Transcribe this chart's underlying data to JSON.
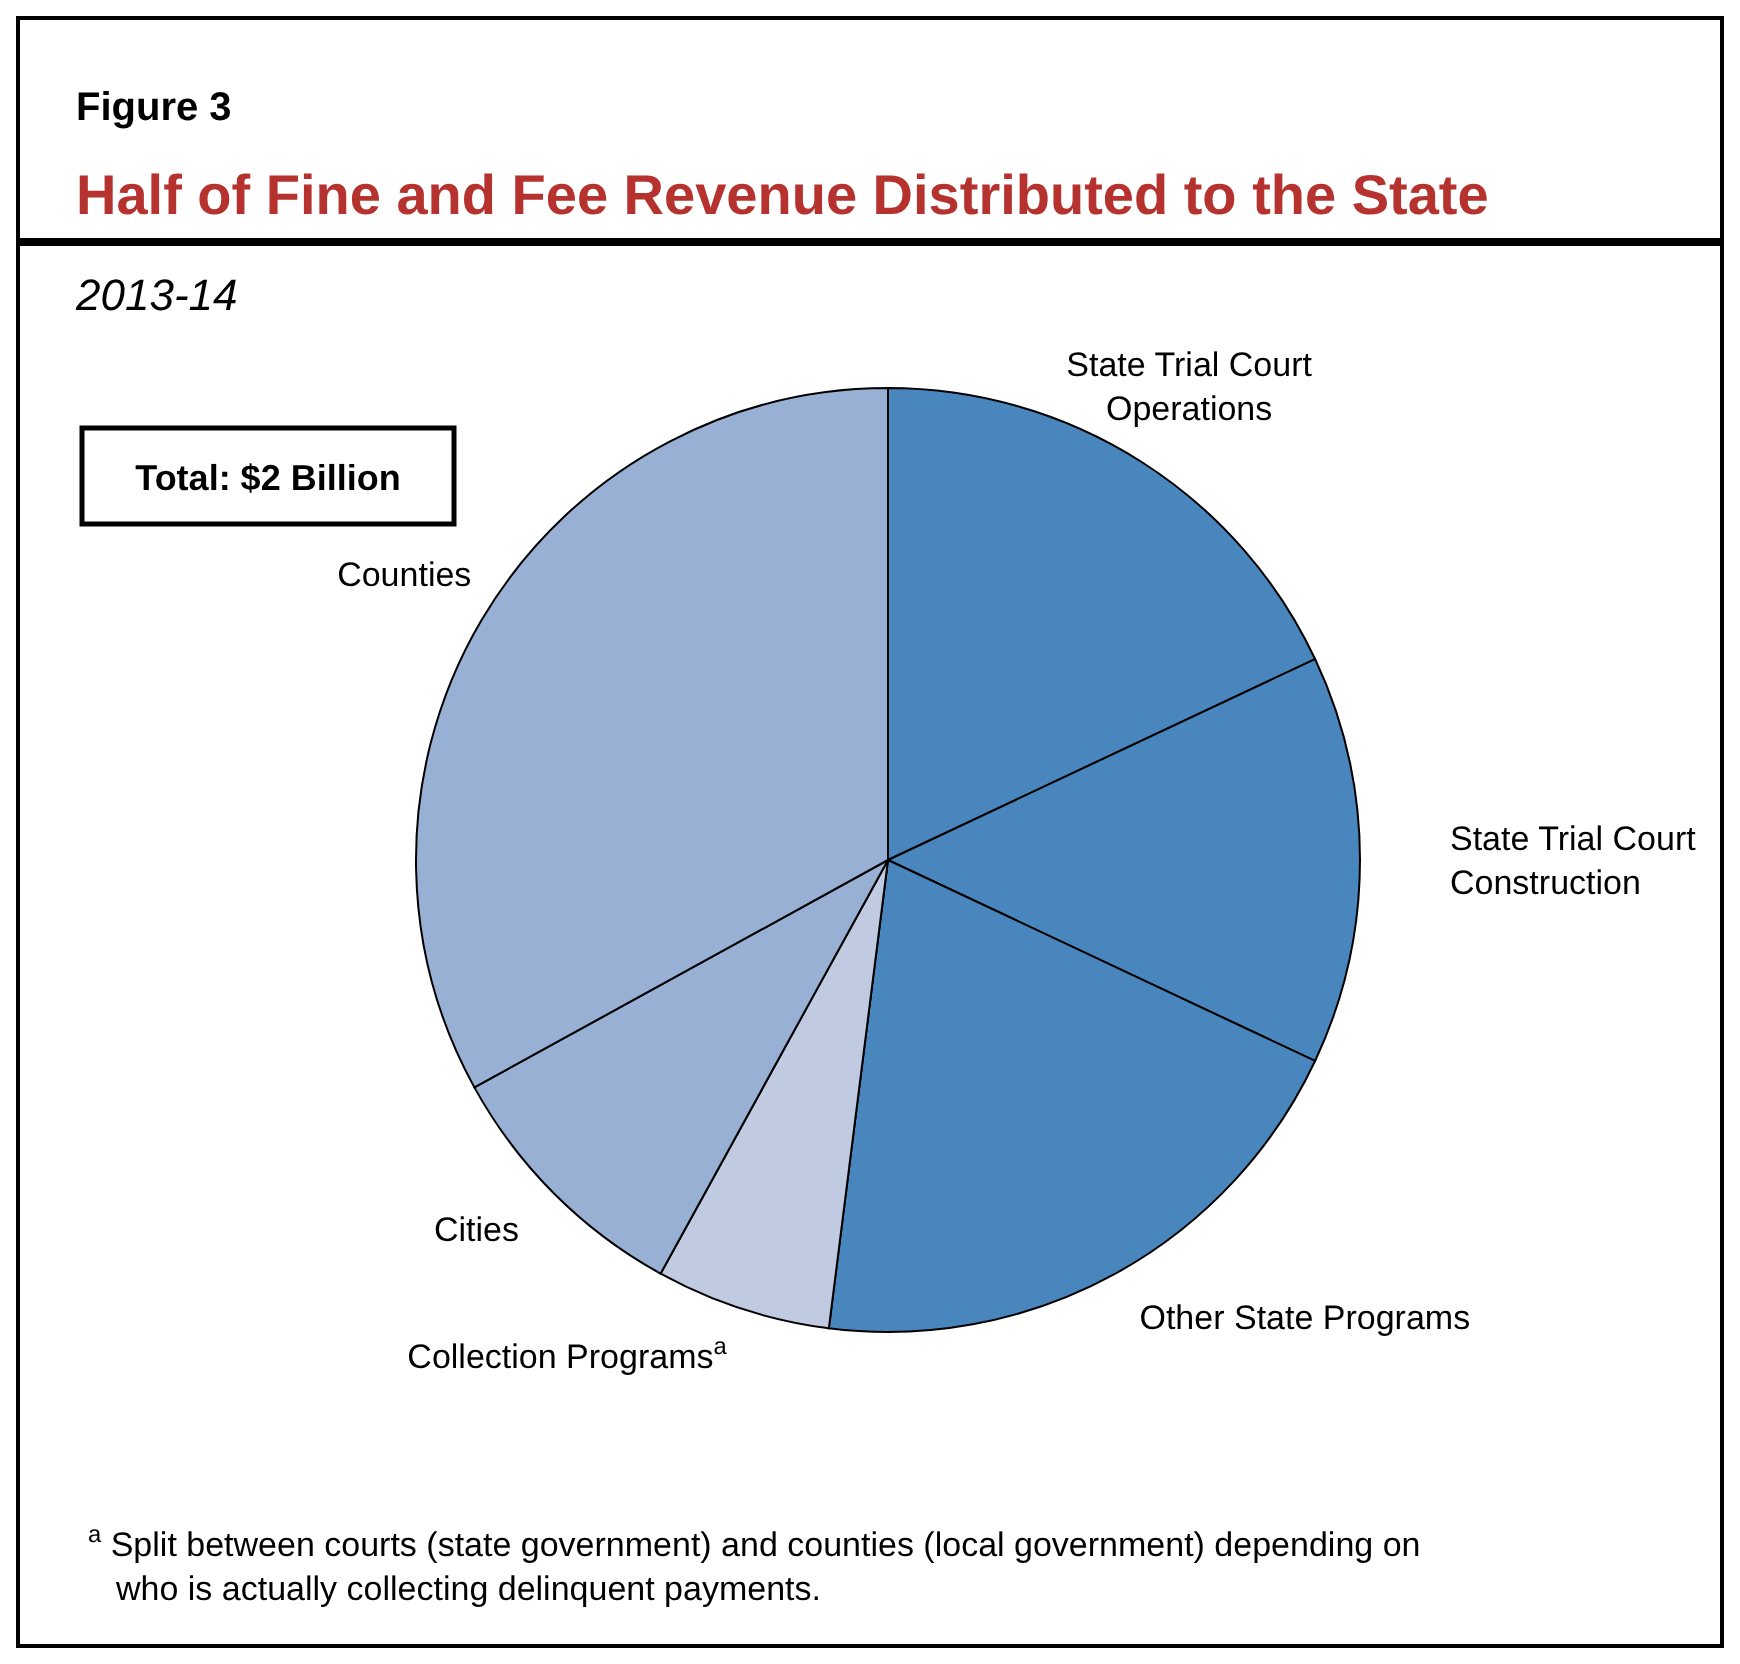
{
  "chart_data": {
    "type": "pie",
    "title": "Half of Fine and Fee Revenue Distributed to the State",
    "subtitle": "2013-14",
    "categories": [
      "State Trial Court Operations",
      "State Trial Court Construction",
      "Other State Programs",
      "Collection Programs$^{a}$",
      "Cities",
      "Counties"
    ],
    "values": [
      18,
      14,
      20,
      6,
      9,
      33
    ],
    "colors": [
      "#4a86be",
      "#4a86be",
      "#4a86be",
      "#c0cae0",
      "#98b0d4",
      "#98b0d4"
    ],
    "annotations": [
      "Figure 3",
      "Total: $2 Billion",
      "$^{a}$ Split between courts (state government) and counties (local government) depending on who is actually collecting delinquent payments."
    ],
    "legend": false
  }
}
